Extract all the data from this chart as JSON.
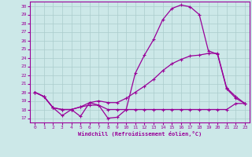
{
  "title": "Windchill (Refroidissement éolien,°C)",
  "bg_color": "#cce8e8",
  "line_color": "#990099",
  "grid_color": "#aacccc",
  "x_ticks": [
    0,
    1,
    2,
    3,
    4,
    5,
    6,
    7,
    8,
    9,
    10,
    11,
    12,
    13,
    14,
    15,
    16,
    17,
    18,
    19,
    20,
    21,
    22,
    23
  ],
  "y_ticks": [
    17,
    18,
    19,
    20,
    21,
    22,
    23,
    24,
    25,
    26,
    27,
    28,
    29,
    30
  ],
  "ylim": [
    16.5,
    30.5
  ],
  "xlim": [
    -0.5,
    23.5
  ],
  "line1_x": [
    0,
    1,
    2,
    3,
    4,
    5,
    6,
    7,
    8,
    9,
    10,
    11,
    12,
    13,
    14,
    15,
    16,
    17,
    18,
    19,
    20,
    21,
    22,
    23
  ],
  "line1_y": [
    20.0,
    19.5,
    18.2,
    17.3,
    18.0,
    17.2,
    18.8,
    18.5,
    17.0,
    17.1,
    18.0,
    22.2,
    24.3,
    26.1,
    28.4,
    29.7,
    30.1,
    29.9,
    29.0,
    24.8,
    24.4,
    20.4,
    19.3,
    18.7
  ],
  "line2_x": [
    0,
    1,
    2,
    3,
    4,
    5,
    6,
    7,
    8,
    9,
    10,
    11,
    12,
    13,
    14,
    15,
    16,
    17,
    18,
    19,
    20,
    21,
    22,
    23
  ],
  "line2_y": [
    20.0,
    19.5,
    18.2,
    18.0,
    18.0,
    18.3,
    18.5,
    18.5,
    18.0,
    18.0,
    18.0,
    18.0,
    18.0,
    18.0,
    18.0,
    18.0,
    18.0,
    18.0,
    18.0,
    18.0,
    18.0,
    18.0,
    18.7,
    18.7
  ],
  "line3_x": [
    0,
    1,
    2,
    3,
    4,
    5,
    6,
    7,
    8,
    9,
    10,
    11,
    12,
    13,
    14,
    15,
    16,
    17,
    18,
    19,
    20,
    21,
    22,
    23
  ],
  "line3_y": [
    20.0,
    19.5,
    18.2,
    18.0,
    18.0,
    18.3,
    18.8,
    19.0,
    18.8,
    18.8,
    19.3,
    20.0,
    20.7,
    21.5,
    22.5,
    23.3,
    23.8,
    24.2,
    24.3,
    24.5,
    24.5,
    20.5,
    19.5,
    18.7
  ]
}
